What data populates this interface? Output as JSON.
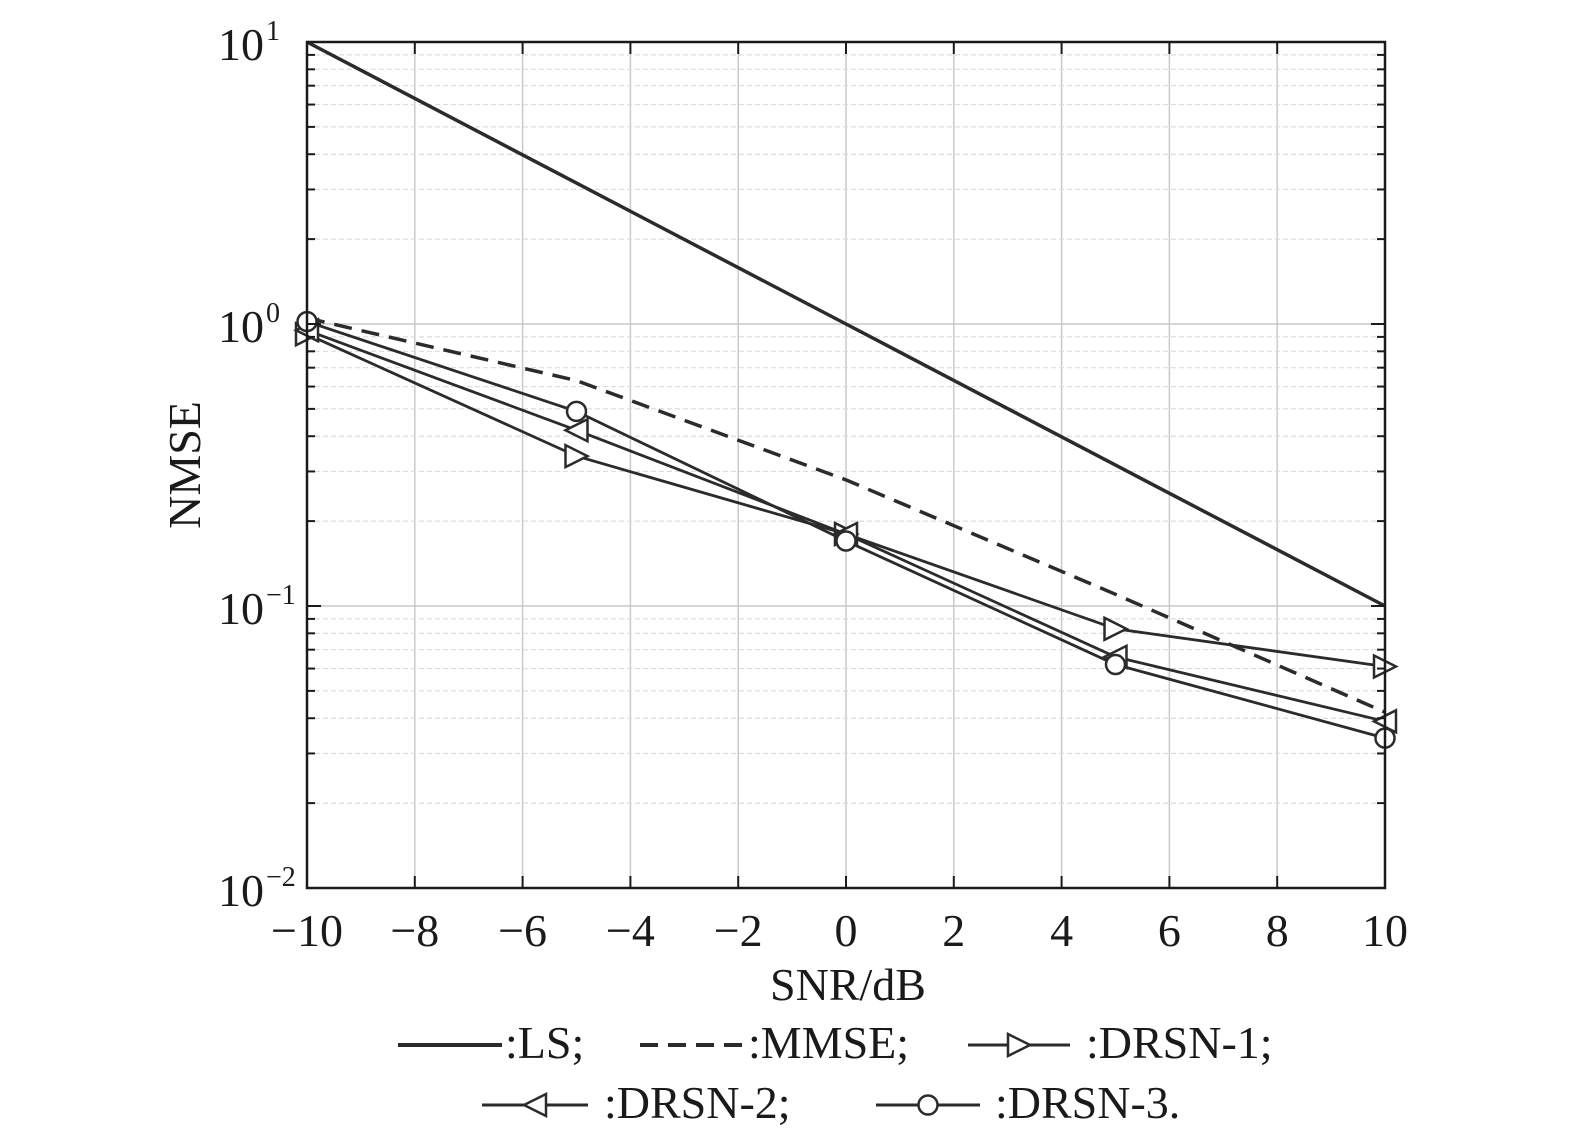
{
  "chart_data": {
    "type": "line",
    "xlabel": "SNR/dB",
    "ylabel": "NMSE",
    "xlim": [
      -10,
      10
    ],
    "ylim": [
      0.01,
      10
    ],
    "yscale": "log",
    "grid": true,
    "legend_position": "bottom",
    "x_ticks": [
      -10,
      -8,
      -6,
      -4,
      -2,
      0,
      2,
      4,
      6,
      8,
      10
    ],
    "x_tick_labels": [
      "−10",
      "−8",
      "−6",
      "−4",
      "−2",
      "0",
      "2",
      "4",
      "6",
      "8",
      "10"
    ],
    "y_ticks": [
      {
        "value": 10,
        "base": "10",
        "exp": "1"
      },
      {
        "value": 1,
        "base": "10",
        "exp": "0"
      },
      {
        "value": 0.1,
        "base": "10",
        "exp": "−1"
      },
      {
        "value": 0.01,
        "base": "10",
        "exp": "−2"
      }
    ],
    "x": [
      -10,
      -5,
      0,
      5,
      10
    ],
    "series": [
      {
        "name": ":LS;",
        "style": "solid",
        "marker": "none",
        "values": [
          10,
          3.16,
          1.0,
          0.316,
          0.1
        ]
      },
      {
        "name": ":MMSE;",
        "style": "dashed",
        "marker": "none",
        "values": [
          1.05,
          0.63,
          0.28,
          0.11,
          0.042
        ]
      },
      {
        "name": ":DRSN-1;",
        "style": "solid",
        "marker": "triangle-right",
        "values": [
          0.92,
          0.34,
          0.18,
          0.083,
          0.061
        ]
      },
      {
        "name": ":DRSN-2;",
        "style": "solid",
        "marker": "triangle-left",
        "values": [
          0.95,
          0.42,
          0.18,
          0.066,
          0.039
        ]
      },
      {
        "name": ":DRSN-3.",
        "style": "solid",
        "marker": "circle",
        "values": [
          1.02,
          0.49,
          0.17,
          0.062,
          0.034
        ]
      }
    ]
  },
  "colors": {
    "line": "#2b2b2b",
    "axis": "#1a1a1a",
    "grid": "#c9c9c9",
    "grid_minor": "#dcdcdc"
  }
}
